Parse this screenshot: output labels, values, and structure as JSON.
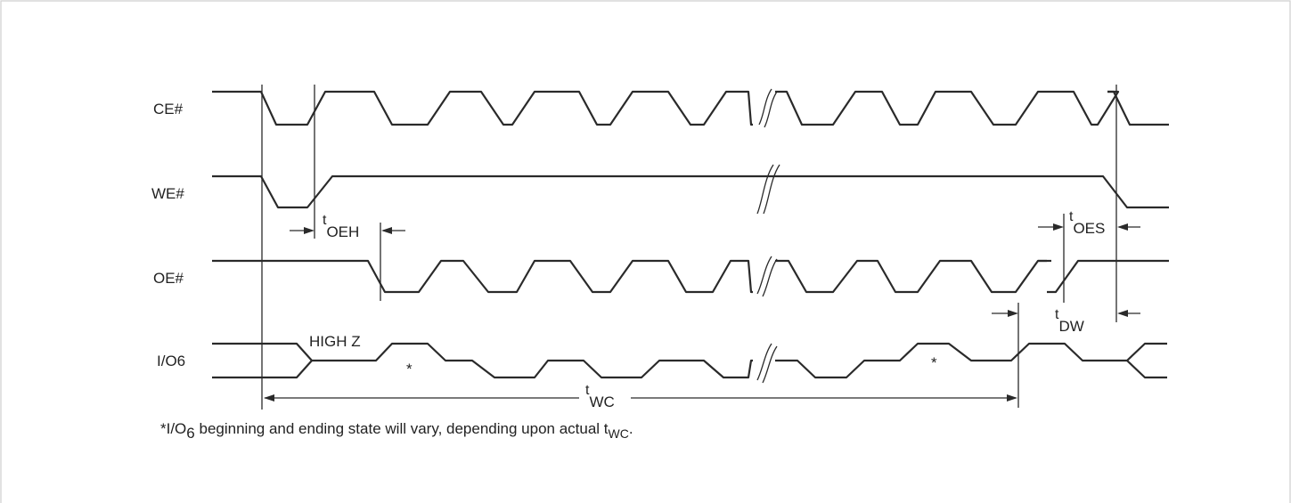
{
  "signals": [
    {
      "id": "ce",
      "label": "CE#"
    },
    {
      "id": "we",
      "label": "WE#"
    },
    {
      "id": "oe",
      "label": "OE#"
    },
    {
      "id": "io",
      "label": "I/O6"
    }
  ],
  "annotations": {
    "high_z": "HIGH Z",
    "asterisk_1": "*",
    "asterisk_2": "*"
  },
  "timing": {
    "oeh": {
      "t": "t",
      "sub": "OEH"
    },
    "oes": {
      "t": "t",
      "sub": "OES"
    },
    "dw": {
      "t": "t",
      "sub": "DW"
    },
    "wc": {
      "t": "t",
      "sub": "WC"
    }
  },
  "footnote": {
    "prefix": "*I/O",
    "sub1": "6",
    "middle": " beginning and ending state will vary, depending upon actual t",
    "sub2": "WC",
    "end": "."
  },
  "colors": {
    "line": "#2a2a2a",
    "border": "#cfcfcf"
  }
}
